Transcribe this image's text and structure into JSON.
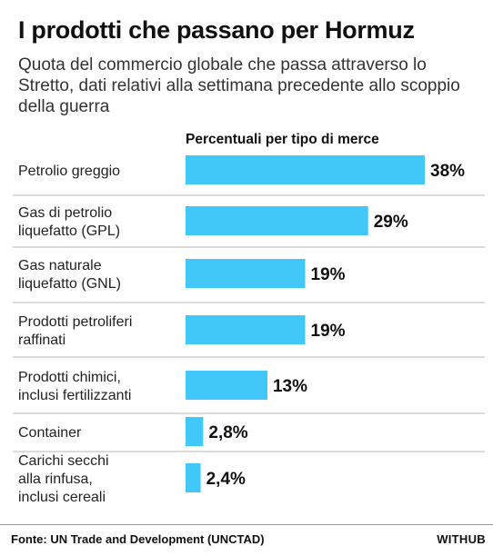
{
  "title": "I prodotti che passano per Hormuz",
  "subtitle": "Quota del commercio globale che passa attraverso lo Stretto, dati relativi alla settimana precedente allo scoppio della guerra",
  "chart_header": "Percentuali per tipo di merce",
  "source": "Fonte: UN Trade and Development (UNCTAD)",
  "brand": "WITHUB",
  "colors": {
    "bar": "#42c8f8",
    "text": "#111111",
    "row_divider": "#b8b8b8"
  },
  "chart_data": {
    "type": "bar",
    "orientation": "horizontal",
    "title": "I prodotti che passano per Hormuz",
    "subtitle": "Quota del commercio globale che passa attraverso lo Stretto, dati relativi alla settimana precedente allo scoppio della guerra",
    "categories": [
      [
        "Petrolio greggio"
      ],
      [
        "Gas di petrolio",
        "liquefatto (GPL)"
      ],
      [
        "Gas naturale",
        "liquefatto (GNL)"
      ],
      [
        "Prodotti petroliferi",
        "raffinati"
      ],
      [
        "Prodotti chimici,",
        "inclusi fertilizzanti"
      ],
      [
        "Container"
      ],
      [
        "Carichi secchi",
        "alla rinfusa,",
        "inclusi cereali"
      ]
    ],
    "values": [
      38,
      29,
      19,
      19,
      13,
      2.8,
      2.4
    ],
    "value_labels": [
      "38%",
      "29%",
      "19%",
      "19%",
      "13%",
      "2,8%",
      "2,4%"
    ],
    "unit": "%",
    "xlim": [
      0,
      38
    ],
    "grid": false,
    "legend": "none"
  }
}
